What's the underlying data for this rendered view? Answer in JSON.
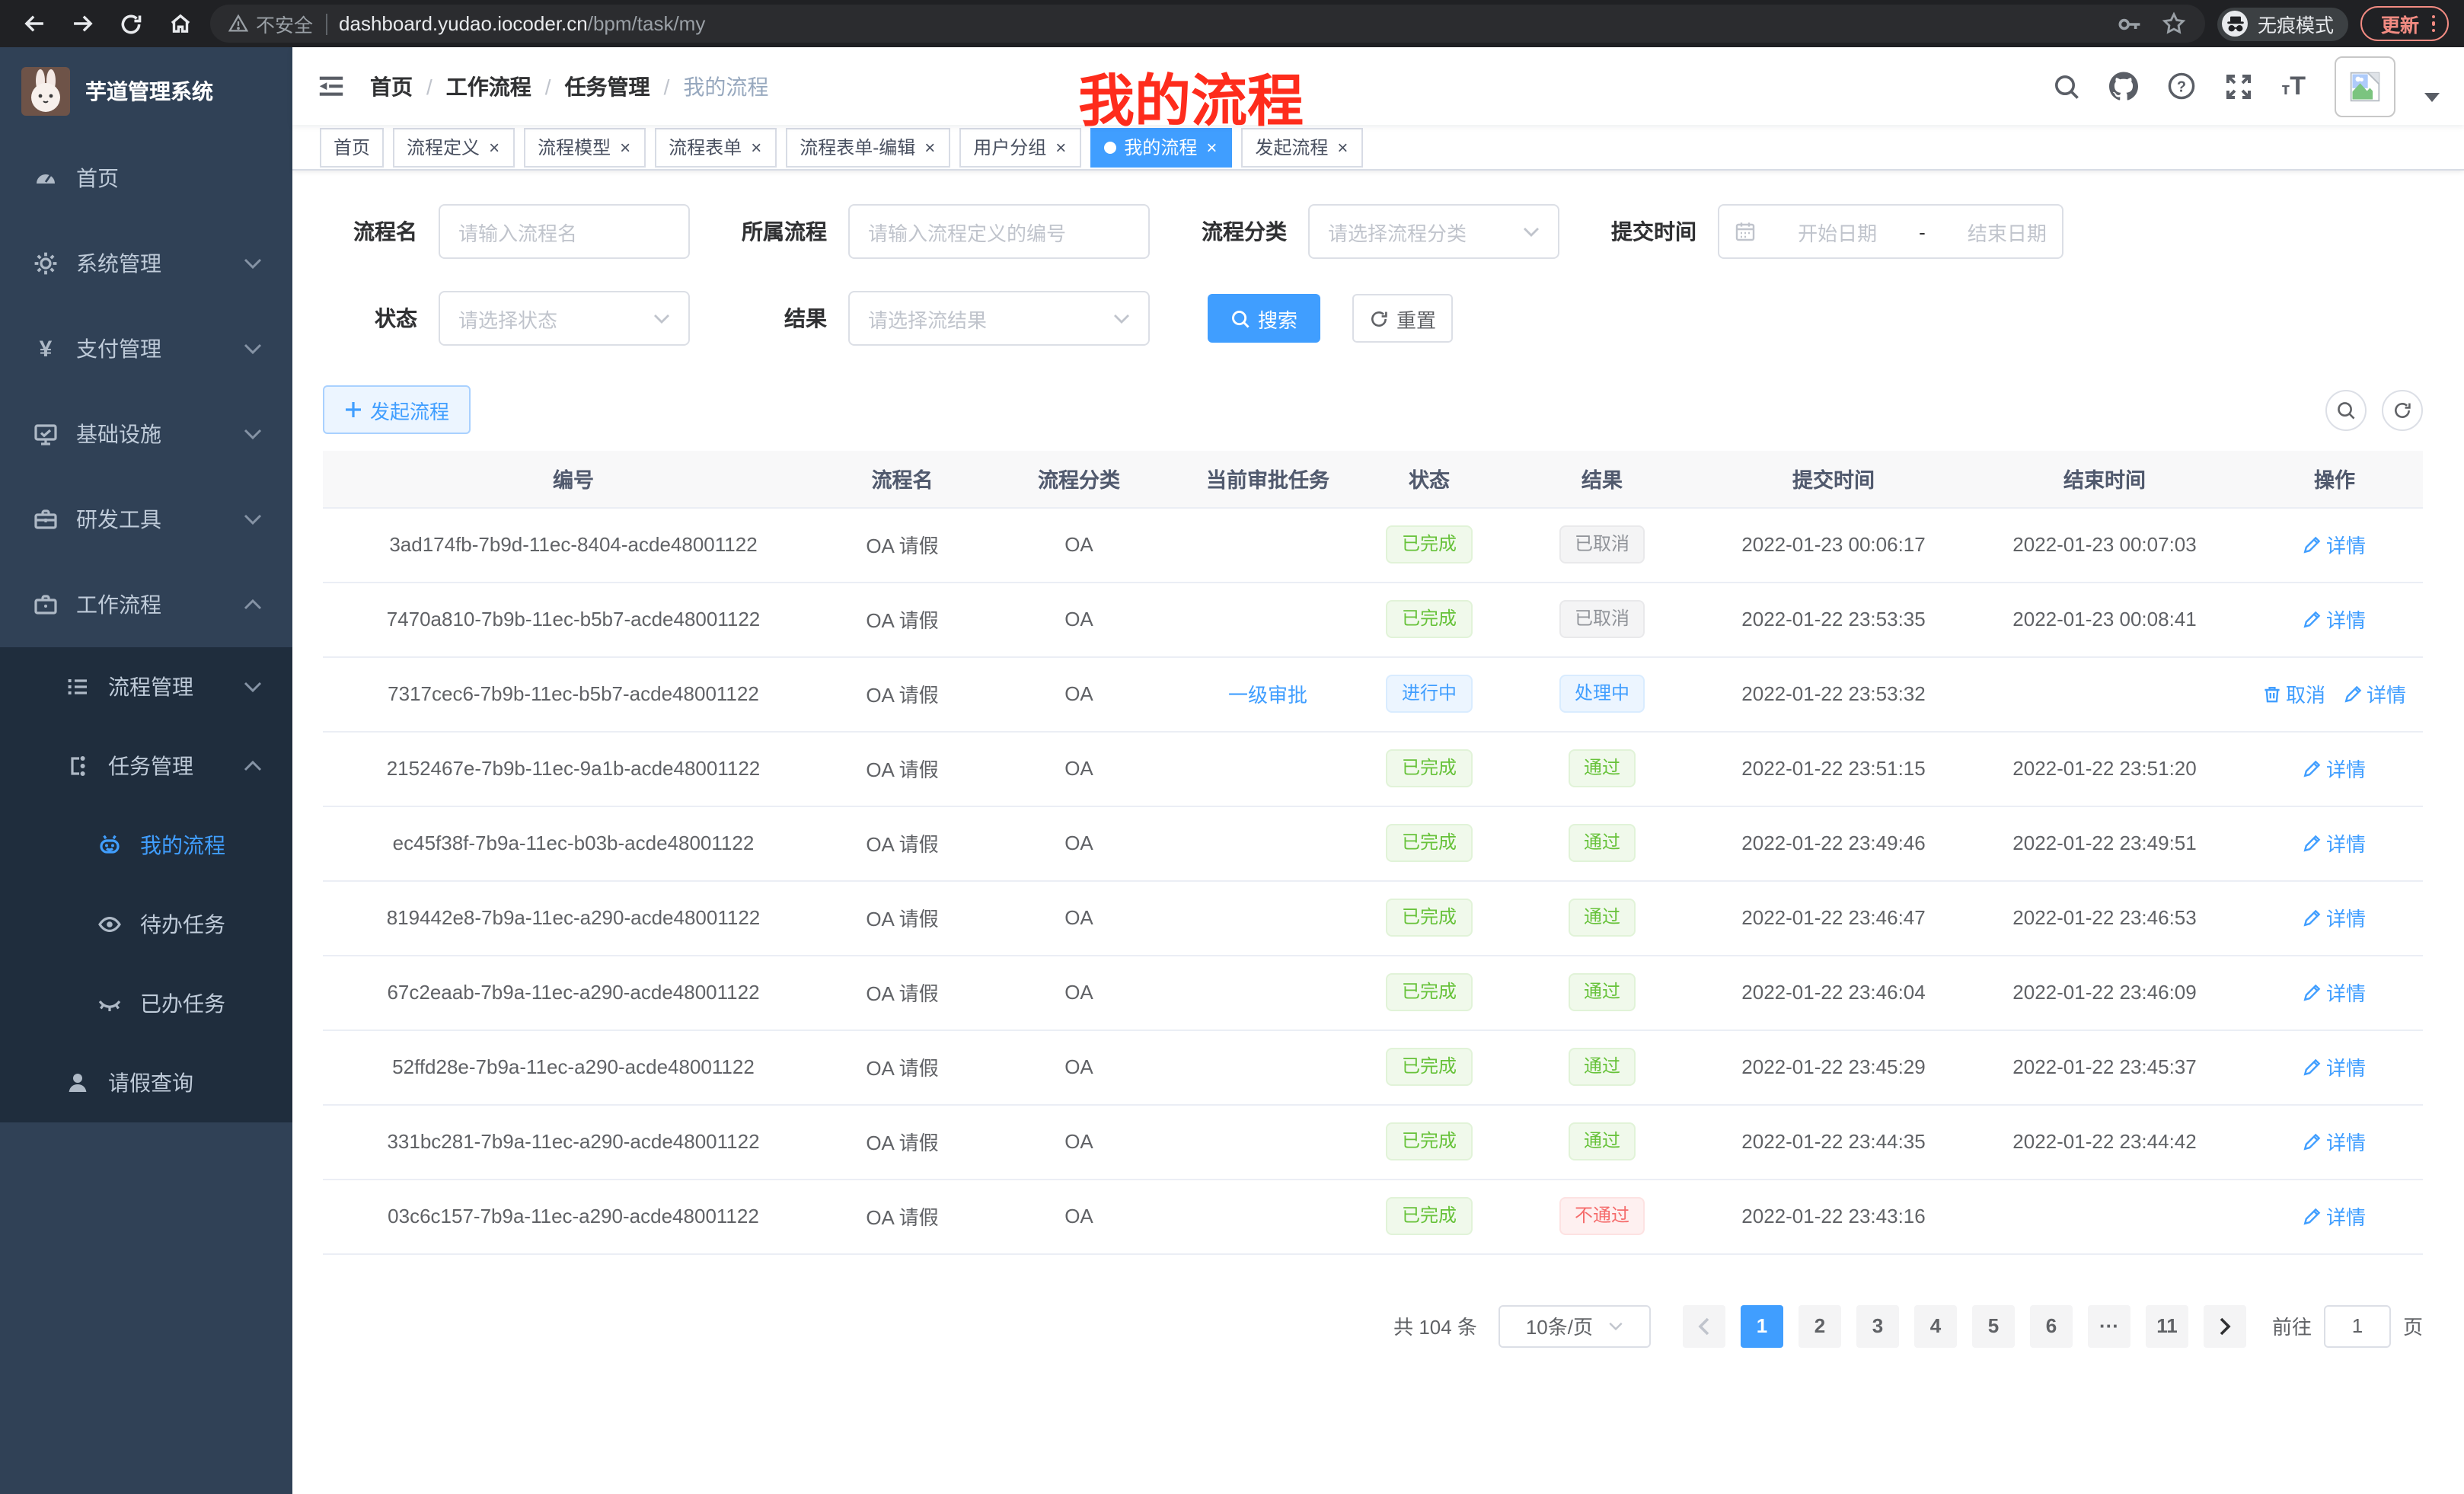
{
  "browser": {
    "security_label": "不安全",
    "url_host": "dashboard.yudao.iocoder.cn",
    "url_path": "/bpm/task/my",
    "incognito_label": "无痕模式",
    "update_label": "更新"
  },
  "sidebar": {
    "app_title": "芋道管理系统",
    "items": [
      {
        "name": "home",
        "label": "首页",
        "icon": "dashboard-icon",
        "level": 1,
        "arrow": "",
        "active": false,
        "sub": false
      },
      {
        "name": "system",
        "label": "系统管理",
        "icon": "gear-icon",
        "level": 1,
        "arrow": "down",
        "active": false,
        "sub": false
      },
      {
        "name": "payment",
        "label": "支付管理",
        "icon": "yen-icon",
        "level": 1,
        "arrow": "down",
        "active": false,
        "sub": false
      },
      {
        "name": "infrastructure",
        "label": "基础设施",
        "icon": "monitor-icon",
        "level": 1,
        "arrow": "down",
        "active": false,
        "sub": false
      },
      {
        "name": "dev-tools",
        "label": "研发工具",
        "icon": "toolbox-icon",
        "level": 1,
        "arrow": "down",
        "active": false,
        "sub": false
      },
      {
        "name": "workflow",
        "label": "工作流程",
        "icon": "briefcase-icon",
        "level": 1,
        "arrow": "up",
        "active": false,
        "sub": false
      },
      {
        "name": "process-mgmt",
        "label": "流程管理",
        "icon": "tree-icon",
        "level": 2,
        "arrow": "down",
        "active": false,
        "sub": true
      },
      {
        "name": "task-mgmt",
        "label": "任务管理",
        "icon": "flow-icon",
        "level": 2,
        "arrow": "up",
        "active": false,
        "sub": true
      },
      {
        "name": "my-process",
        "label": "我的流程",
        "icon": "robot-icon",
        "level": 3,
        "arrow": "",
        "active": true,
        "sub": true
      },
      {
        "name": "todo-tasks",
        "label": "待办任务",
        "icon": "eye-open-icon",
        "level": 3,
        "arrow": "",
        "active": false,
        "sub": true
      },
      {
        "name": "done-tasks",
        "label": "已办任务",
        "icon": "eye-closed-icon",
        "level": 3,
        "arrow": "",
        "active": false,
        "sub": true
      },
      {
        "name": "leave-query",
        "label": "请假查询",
        "icon": "user-icon",
        "level": 2,
        "arrow": "",
        "active": false,
        "sub": true
      }
    ]
  },
  "header": {
    "breadcrumb": [
      "首页",
      "工作流程",
      "任务管理",
      "我的流程"
    ],
    "overlay_title": "我的流程",
    "icons": [
      "search-icon",
      "github-icon",
      "help-icon",
      "fullscreen-icon",
      "font-size-icon",
      "avatar-image",
      "caret-down-icon"
    ]
  },
  "tabs": [
    {
      "label": "首页",
      "closable": false,
      "active": false
    },
    {
      "label": "流程定义",
      "closable": true,
      "active": false
    },
    {
      "label": "流程模型",
      "closable": true,
      "active": false
    },
    {
      "label": "流程表单",
      "closable": true,
      "active": false
    },
    {
      "label": "流程表单-编辑",
      "closable": true,
      "active": false
    },
    {
      "label": "用户分组",
      "closable": true,
      "active": false
    },
    {
      "label": "我的流程",
      "closable": true,
      "active": true
    },
    {
      "label": "发起流程",
      "closable": true,
      "active": false
    }
  ],
  "filters": {
    "process_name": {
      "label": "流程名",
      "placeholder": "请输入流程名"
    },
    "process_definition": {
      "label": "所属流程",
      "placeholder": "请输入流程定义的编号"
    },
    "category": {
      "label": "流程分类",
      "placeholder": "请选择流程分类"
    },
    "submit_time": {
      "label": "提交时间",
      "start_placeholder": "开始日期",
      "separator": "-",
      "end_placeholder": "结束日期"
    },
    "status": {
      "label": "状态",
      "placeholder": "请选择状态"
    },
    "result": {
      "label": "结果",
      "placeholder": "请选择流结果"
    },
    "search_label": "搜索",
    "reset_label": "重置"
  },
  "toolbar": {
    "create_label": "发起流程"
  },
  "table": {
    "columns": [
      "编号",
      "流程名",
      "流程分类",
      "当前审批任务",
      "状态",
      "结果",
      "提交时间",
      "结束时间",
      "操作"
    ],
    "detail_label": "详情",
    "cancel_label": "取消",
    "rows": [
      {
        "id": "3ad174fb-7b9d-11ec-8404-acde48001122",
        "name": "OA 请假",
        "category": "OA",
        "current_task": "",
        "status": "已完成",
        "status_type": "success",
        "result": "已取消",
        "result_type": "info",
        "submit_time": "2022-01-23 00:06:17",
        "end_time": "2022-01-23 00:07:03",
        "actions": [
          {
            "label": "详情",
            "icon": "edit-icon"
          }
        ]
      },
      {
        "id": "7470a810-7b9b-11ec-b5b7-acde48001122",
        "name": "OA 请假",
        "category": "OA",
        "current_task": "",
        "status": "已完成",
        "status_type": "success",
        "result": "已取消",
        "result_type": "info",
        "submit_time": "2022-01-22 23:53:35",
        "end_time": "2022-01-23 00:08:41",
        "actions": [
          {
            "label": "详情",
            "icon": "edit-icon"
          }
        ]
      },
      {
        "id": "7317cec6-7b9b-11ec-b5b7-acde48001122",
        "name": "OA 请假",
        "category": "OA",
        "current_task": "一级审批",
        "status": "进行中",
        "status_type": "primary",
        "result": "处理中",
        "result_type": "primary",
        "submit_time": "2022-01-22 23:53:32",
        "end_time": "",
        "actions": [
          {
            "label": "取消",
            "icon": "delete-icon"
          },
          {
            "label": "详情",
            "icon": "edit-icon"
          }
        ]
      },
      {
        "id": "2152467e-7b9b-11ec-9a1b-acde48001122",
        "name": "OA 请假",
        "category": "OA",
        "current_task": "",
        "status": "已完成",
        "status_type": "success",
        "result": "通过",
        "result_type": "success",
        "submit_time": "2022-01-22 23:51:15",
        "end_time": "2022-01-22 23:51:20",
        "actions": [
          {
            "label": "详情",
            "icon": "edit-icon"
          }
        ]
      },
      {
        "id": "ec45f38f-7b9a-11ec-b03b-acde48001122",
        "name": "OA 请假",
        "category": "OA",
        "current_task": "",
        "status": "已完成",
        "status_type": "success",
        "result": "通过",
        "result_type": "success",
        "submit_time": "2022-01-22 23:49:46",
        "end_time": "2022-01-22 23:49:51",
        "actions": [
          {
            "label": "详情",
            "icon": "edit-icon"
          }
        ]
      },
      {
        "id": "819442e8-7b9a-11ec-a290-acde48001122",
        "name": "OA 请假",
        "category": "OA",
        "current_task": "",
        "status": "已完成",
        "status_type": "success",
        "result": "通过",
        "result_type": "success",
        "submit_time": "2022-01-22 23:46:47",
        "end_time": "2022-01-22 23:46:53",
        "actions": [
          {
            "label": "详情",
            "icon": "edit-icon"
          }
        ]
      },
      {
        "id": "67c2eaab-7b9a-11ec-a290-acde48001122",
        "name": "OA 请假",
        "category": "OA",
        "current_task": "",
        "status": "已完成",
        "status_type": "success",
        "result": "通过",
        "result_type": "success",
        "submit_time": "2022-01-22 23:46:04",
        "end_time": "2022-01-22 23:46:09",
        "actions": [
          {
            "label": "详情",
            "icon": "edit-icon"
          }
        ]
      },
      {
        "id": "52ffd28e-7b9a-11ec-a290-acde48001122",
        "name": "OA 请假",
        "category": "OA",
        "current_task": "",
        "status": "已完成",
        "status_type": "success",
        "result": "通过",
        "result_type": "success",
        "submit_time": "2022-01-22 23:45:29",
        "end_time": "2022-01-22 23:45:37",
        "actions": [
          {
            "label": "详情",
            "icon": "edit-icon"
          }
        ]
      },
      {
        "id": "331bc281-7b9a-11ec-a290-acde48001122",
        "name": "OA 请假",
        "category": "OA",
        "current_task": "",
        "status": "已完成",
        "status_type": "success",
        "result": "通过",
        "result_type": "success",
        "submit_time": "2022-01-22 23:44:35",
        "end_time": "2022-01-22 23:44:42",
        "actions": [
          {
            "label": "详情",
            "icon": "edit-icon"
          }
        ]
      },
      {
        "id": "03c6c157-7b9a-11ec-a290-acde48001122",
        "name": "OA 请假",
        "category": "OA",
        "current_task": "",
        "status": "已完成",
        "status_type": "success",
        "result": "不通过",
        "result_type": "danger",
        "submit_time": "2022-01-22 23:43:16",
        "end_time": "",
        "actions": [
          {
            "label": "详情",
            "icon": "edit-icon"
          }
        ]
      }
    ]
  },
  "pagination": {
    "total_label": "共 104 条",
    "page_size_label": "10条/页",
    "pages": [
      "1",
      "2",
      "3",
      "4",
      "5",
      "6",
      "···",
      "11"
    ],
    "active_page": "1",
    "goto_label": "前往",
    "goto_value": "1",
    "goto_unit": "页"
  },
  "icons_map": {
    "back-icon": "←",
    "forward-icon": "→",
    "reload-icon": "⟳",
    "home-icon": "⌂",
    "warning-icon": "⚠",
    "key-icon": "⚷",
    "star-icon": "☆",
    "incognito-icon": "spy-hat-glasses",
    "more-vertical-icon": "⋮",
    "search-icon": "magnifier",
    "github-icon": "github-mark",
    "help-icon": "?",
    "fullscreen-icon": "expand-arrows",
    "font-size-icon": "tT",
    "caret-down-icon": "▾",
    "close-icon": "×",
    "plus-icon": "+",
    "refresh-icon": "⟳",
    "calendar-icon": "calendar",
    "chevron-down-icon": "∨",
    "chevron-up-icon": "∧",
    "edit-icon": "pen",
    "delete-icon": "trash",
    "hamburger-icon": "fold-menu"
  },
  "colors": {
    "accent": "#409eff",
    "success": "#67c23a",
    "info": "#909399",
    "danger": "#f56c6c",
    "sidebar_bg": "#304156",
    "submenu_bg": "#1f2d3d",
    "browser_bar_bg": "#202124",
    "active_tag_bg": "#409eff",
    "overlay_title_color": "#fe2c1c",
    "tag_success_bg": "#f0f9eb",
    "tag_info_bg": "#f4f4f5",
    "tag_primary_bg": "#ecf5ff",
    "tag_danger_bg": "#fef0f0"
  }
}
